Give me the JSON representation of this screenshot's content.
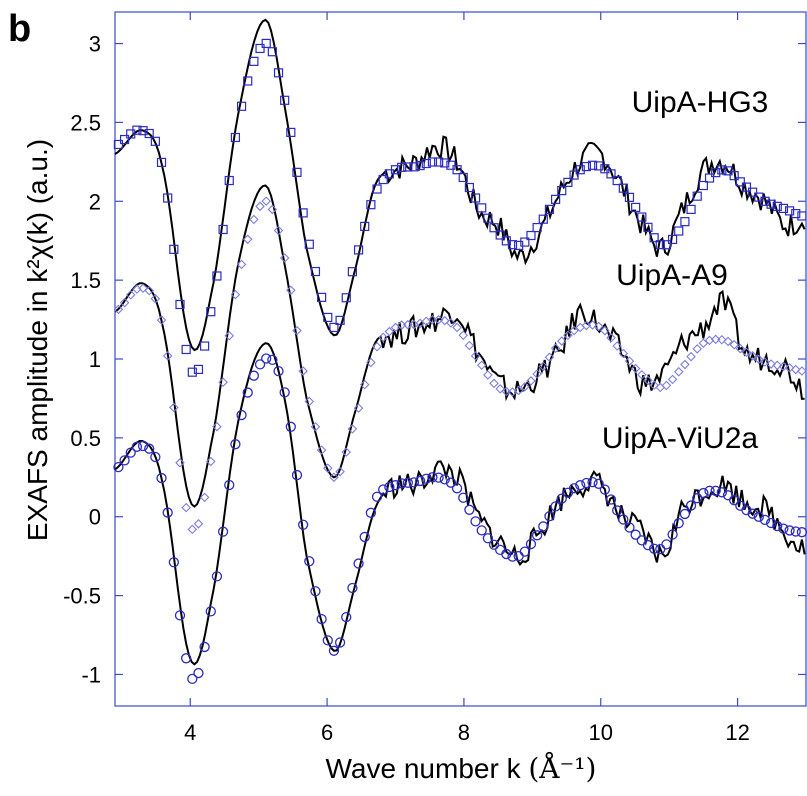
{
  "panel_label": "b",
  "chart_data": {
    "type": "line",
    "xlabel": "Wave number k",
    "xlabel_unit": "(Å⁻¹)",
    "ylabel": "EXAFS amplitude in k²χ(k) (a.u.)",
    "xlim": [
      2.9,
      13.0
    ],
    "ylim": [
      -1.2,
      3.2
    ],
    "xticks": [
      4,
      6,
      8,
      10,
      12
    ],
    "yticks": [
      3,
      2.5,
      2,
      1.5,
      1,
      0.5,
      0,
      -0.5,
      -1
    ],
    "ytick_labels": [
      "3",
      "2.5",
      "2",
      "1.5",
      "1",
      "0.5",
      "0",
      "-0.5",
      "-1"
    ],
    "grid": false,
    "colors": {
      "axis": "#3a4bc8",
      "experimental": "#000000",
      "fit": "#2b2bc0",
      "fit_A9": "#7c7ce0"
    },
    "series": [
      {
        "name": "UipA-HG3",
        "experimental": {
          "x": [
            2.9,
            3.3,
            3.6,
            4.0,
            4.3,
            4.7,
            5.1,
            5.4,
            5.7,
            6.1,
            6.4,
            6.7,
            7.0,
            7.3,
            7.6,
            7.9,
            8.2,
            8.5,
            8.8,
            9.1,
            9.4,
            9.7,
            10.0,
            10.3,
            10.6,
            10.9,
            11.2,
            11.5,
            11.8,
            12.1,
            12.4,
            12.7,
            13.0
          ],
          "y": [
            2.3,
            2.45,
            2.2,
            1.1,
            1.4,
            2.55,
            3.15,
            2.55,
            1.7,
            1.15,
            1.55,
            2.1,
            2.2,
            2.25,
            2.35,
            2.25,
            1.95,
            1.85,
            1.65,
            1.8,
            2.05,
            2.25,
            2.3,
            2.1,
            1.85,
            1.7,
            1.95,
            2.2,
            2.25,
            2.1,
            2.0,
            1.85,
            1.9
          ]
        },
        "fit": {
          "x": [
            2.9,
            3.3,
            3.6,
            4.0,
            4.3,
            4.7,
            5.1,
            5.4,
            5.7,
            6.1,
            6.4,
            6.7,
            7.0,
            7.3,
            7.6,
            7.9,
            8.2,
            8.5,
            8.8,
            9.1,
            9.4,
            9.7,
            10.0,
            10.3,
            10.6,
            10.9,
            11.2,
            11.5,
            11.8,
            12.1,
            12.4,
            12.7,
            13.0
          ],
          "y": [
            2.35,
            2.45,
            2.2,
            0.95,
            1.3,
            2.5,
            3.0,
            2.6,
            1.8,
            1.2,
            1.6,
            2.05,
            2.2,
            2.22,
            2.25,
            2.2,
            2.0,
            1.8,
            1.72,
            1.85,
            2.05,
            2.2,
            2.22,
            2.1,
            1.9,
            1.72,
            1.85,
            2.1,
            2.2,
            2.1,
            2.0,
            1.95,
            1.9
          ]
        }
      },
      {
        "name": "UipA-A9",
        "experimental": {
          "x": [
            2.9,
            3.3,
            3.6,
            4.0,
            4.3,
            4.7,
            5.1,
            5.4,
            5.7,
            6.1,
            6.4,
            6.7,
            7.0,
            7.3,
            7.6,
            7.9,
            8.2,
            8.5,
            8.8,
            9.1,
            9.4,
            9.7,
            10.0,
            10.3,
            10.6,
            10.9,
            11.2,
            11.5,
            11.8,
            12.1,
            12.4,
            12.7,
            13.0
          ],
          "y": [
            1.3,
            1.48,
            1.2,
            0.1,
            0.45,
            1.6,
            2.1,
            1.55,
            0.75,
            0.25,
            0.65,
            1.1,
            1.15,
            1.2,
            1.25,
            1.3,
            1.05,
            0.85,
            0.8,
            0.9,
            1.05,
            1.3,
            1.2,
            1.05,
            0.85,
            0.9,
            1.1,
            1.2,
            1.35,
            1.05,
            1.0,
            0.95,
            0.8
          ]
        },
        "fit": {
          "x": [
            2.9,
            3.3,
            3.6,
            4.0,
            4.3,
            4.7,
            5.1,
            5.4,
            5.7,
            6.1,
            6.4,
            6.7,
            7.0,
            7.3,
            7.6,
            7.9,
            8.2,
            8.5,
            8.8,
            9.1,
            9.4,
            9.7,
            10.0,
            10.3,
            10.6,
            10.9,
            11.2,
            11.5,
            11.8,
            12.1,
            12.4,
            12.7,
            13.0
          ],
          "y": [
            1.3,
            1.45,
            1.2,
            -0.05,
            0.35,
            1.5,
            2.0,
            1.6,
            0.8,
            0.25,
            0.6,
            1.05,
            1.2,
            1.22,
            1.25,
            1.2,
            1.0,
            0.82,
            0.8,
            0.92,
            1.1,
            1.2,
            1.2,
            1.05,
            0.9,
            0.82,
            0.95,
            1.1,
            1.12,
            1.05,
            0.98,
            0.95,
            0.92
          ]
        }
      },
      {
        "name": "UipA-ViU2a",
        "experimental": {
          "x": [
            2.9,
            3.3,
            3.6,
            4.0,
            4.3,
            4.7,
            5.1,
            5.4,
            5.7,
            6.1,
            6.4,
            6.7,
            7.0,
            7.3,
            7.6,
            7.9,
            8.2,
            8.5,
            8.8,
            9.1,
            9.4,
            9.7,
            10.0,
            10.3,
            10.6,
            10.9,
            11.2,
            11.5,
            11.8,
            12.1,
            12.4,
            12.7,
            13.0
          ],
          "y": [
            0.3,
            0.48,
            0.2,
            -0.9,
            -0.55,
            0.6,
            1.1,
            0.7,
            -0.25,
            -0.85,
            -0.45,
            0.05,
            0.2,
            0.2,
            0.3,
            0.25,
            0.0,
            -0.15,
            -0.25,
            -0.1,
            0.1,
            0.2,
            0.2,
            0.0,
            -0.1,
            -0.25,
            0.05,
            0.15,
            0.2,
            0.1,
            0.05,
            -0.1,
            -0.2
          ]
        },
        "fit": {
          "x": [
            2.9,
            3.3,
            3.6,
            4.0,
            4.3,
            4.7,
            5.1,
            5.4,
            5.7,
            6.1,
            6.4,
            6.7,
            7.0,
            7.3,
            7.6,
            7.9,
            8.2,
            8.5,
            8.8,
            9.1,
            9.4,
            9.7,
            10.0,
            10.3,
            10.6,
            10.9,
            11.2,
            11.5,
            11.8,
            12.1,
            12.4,
            12.7,
            13.0
          ],
          "y": [
            0.3,
            0.45,
            0.2,
            -1.0,
            -0.6,
            0.55,
            1.0,
            0.75,
            -0.2,
            -0.85,
            -0.4,
            0.1,
            0.2,
            0.22,
            0.25,
            0.18,
            -0.05,
            -0.2,
            -0.25,
            -0.1,
            0.1,
            0.2,
            0.2,
            0.0,
            -0.15,
            -0.2,
            0.0,
            0.15,
            0.15,
            0.05,
            -0.02,
            -0.08,
            -0.1
          ]
        }
      }
    ]
  }
}
